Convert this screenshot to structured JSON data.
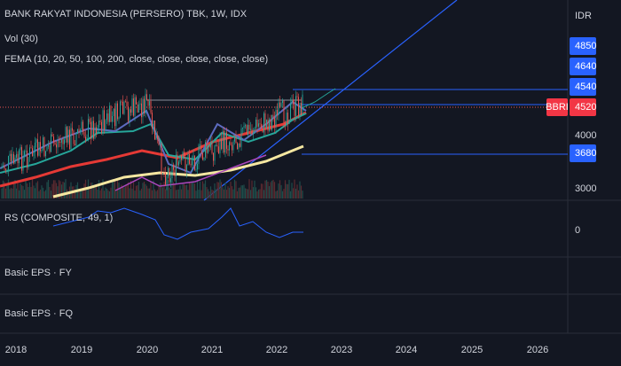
{
  "header": {
    "title": "BANK RAKYAT INDONESIA (PERSERO) TBK, 1W, IDX",
    "volume": "Vol (30)",
    "fema": "FEMA (10, 20, 50, 100, 200, close, close, close, close, close)"
  },
  "price_axis": {
    "currency": "IDR",
    "labels": [
      4850,
      4640,
      4540,
      4520,
      4000,
      3680,
      3000
    ],
    "symbol": "BBRI"
  },
  "panes": {
    "rs": {
      "title": "RS (COMPOSITE, 49, 1)",
      "zero": 0
    },
    "eps_fy": {
      "title": "Basic EPS · FY"
    },
    "eps_fq": {
      "title": "Basic EPS · FQ"
    }
  },
  "time_axis": {
    "labels": [
      2018,
      2019,
      2020,
      2021,
      2022,
      2023,
      2024,
      2025,
      2026
    ]
  }
}
